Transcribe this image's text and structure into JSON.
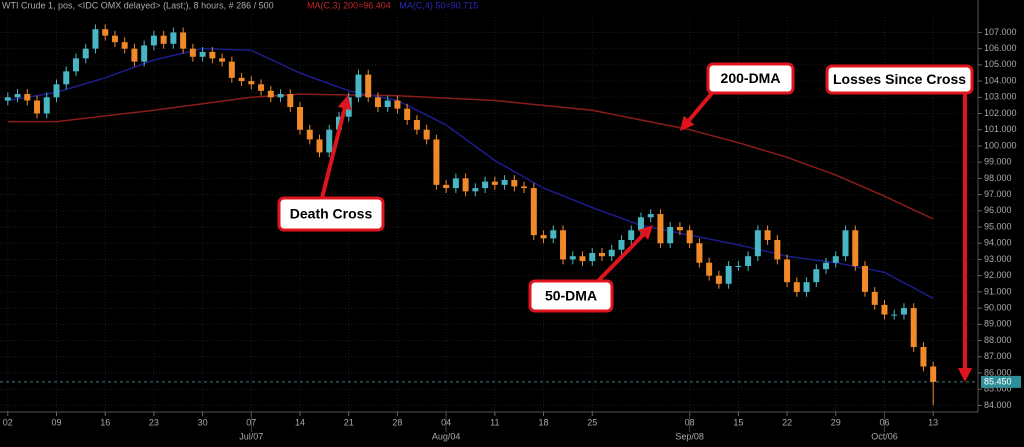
{
  "chart_data": {
    "type": "candlestick",
    "title": "WTI Crude 1, pos, <IDC OMX delayed> (Last;), 8 hours, # 286 / 500",
    "indicators": [
      {
        "text": "MA(C,3) 200=96.404",
        "color": "#c0282a"
      },
      {
        "text": "MA(C,4) 50=90.715",
        "color": "#2a2ab8"
      }
    ],
    "up_color": "#49b6c4",
    "down_color": "#f0892a",
    "x": [
      0,
      1,
      2,
      3,
      4,
      5,
      6,
      7,
      8,
      9,
      10,
      11,
      12,
      13,
      14,
      15,
      16,
      17,
      18,
      19,
      20,
      21,
      22,
      23,
      24,
      25,
      26,
      27,
      28,
      29,
      30,
      31,
      32,
      33,
      34,
      35,
      36,
      37,
      38,
      39,
      40,
      41,
      42,
      43,
      44,
      45,
      46,
      47,
      48,
      49,
      50,
      51,
      52,
      53,
      54,
      55,
      56,
      57,
      58,
      59,
      60,
      61,
      62,
      63,
      64,
      65,
      66,
      67,
      68,
      69,
      70,
      71,
      72,
      73,
      74,
      75,
      76,
      77,
      78,
      79,
      80,
      81,
      82,
      83,
      84,
      85,
      86,
      87,
      88,
      89,
      90,
      91,
      92,
      93,
      94,
      95
    ],
    "open": [
      102.8,
      103.0,
      103.2,
      102.8,
      102.0,
      103.0,
      103.8,
      104.6,
      105.4,
      106.0,
      107.2,
      106.8,
      106.4,
      106.0,
      105.2,
      106.2,
      106.8,
      106.3,
      107.0,
      106.0,
      105.5,
      105.8,
      105.4,
      105.2,
      104.2,
      104.0,
      103.8,
      103.4,
      103.0,
      103.2,
      102.4,
      101.0,
      100.4,
      99.6,
      101.0,
      101.8,
      103.0,
      104.4,
      103.0,
      102.4,
      102.8,
      102.3,
      101.6,
      101.0,
      100.4,
      97.6,
      97.4,
      98.0,
      97.2,
      97.4,
      97.8,
      97.6,
      97.9,
      97.5,
      97.4,
      94.5,
      94.3,
      94.8,
      93.0,
      93.2,
      92.9,
      93.4,
      93.2,
      93.6,
      94.2,
      94.8,
      95.6,
      95.8,
      94.0,
      95.0,
      94.8,
      94.0,
      92.8,
      92.0,
      91.5,
      92.6,
      92.6,
      93.2,
      94.8,
      94.2,
      93.0,
      91.6,
      91.0,
      91.6,
      92.4,
      92.8,
      93.2,
      94.8,
      92.6,
      91.0,
      90.2,
      89.6,
      89.6,
      90.0,
      87.6,
      86.4
    ],
    "high": [
      103.3,
      103.5,
      103.5,
      103.1,
      103.3,
      104.1,
      104.9,
      105.7,
      106.3,
      107.5,
      107.5,
      107.1,
      106.7,
      106.3,
      106.5,
      107.1,
      107.1,
      107.3,
      107.3,
      106.3,
      106.1,
      106.1,
      105.7,
      105.5,
      104.5,
      104.3,
      104.1,
      103.7,
      103.5,
      103.5,
      102.7,
      101.3,
      100.7,
      101.3,
      102.1,
      103.3,
      104.7,
      104.7,
      103.3,
      103.1,
      103.1,
      102.6,
      101.9,
      101.3,
      100.7,
      97.9,
      98.3,
      98.3,
      97.7,
      98.1,
      98.1,
      98.2,
      98.2,
      97.8,
      97.7,
      94.8,
      95.1,
      95.1,
      93.5,
      93.5,
      93.7,
      93.7,
      93.9,
      94.5,
      95.1,
      95.9,
      96.1,
      96.1,
      95.3,
      95.3,
      95.1,
      94.3,
      93.1,
      92.3,
      92.9,
      92.9,
      93.5,
      95.1,
      95.1,
      94.5,
      93.3,
      91.9,
      91.9,
      92.7,
      93.1,
      93.5,
      95.1,
      95.1,
      92.9,
      91.3,
      90.5,
      89.9,
      90.3,
      90.3,
      87.9,
      86.7
    ],
    "low": [
      102.5,
      102.7,
      102.5,
      101.7,
      101.7,
      102.7,
      103.5,
      104.3,
      105.1,
      105.7,
      106.5,
      106.1,
      105.7,
      104.9,
      104.9,
      105.9,
      106.0,
      106.0,
      105.7,
      105.2,
      105.2,
      105.1,
      104.9,
      103.9,
      103.7,
      103.5,
      103.1,
      102.7,
      102.7,
      102.1,
      100.7,
      100.1,
      99.3,
      99.3,
      100.7,
      101.5,
      102.7,
      102.7,
      102.1,
      102.1,
      102.0,
      101.3,
      100.7,
      100.1,
      97.3,
      97.1,
      97.1,
      96.9,
      96.9,
      97.1,
      97.3,
      97.3,
      97.2,
      97.1,
      94.2,
      94.0,
      94.0,
      92.7,
      92.7,
      92.6,
      92.6,
      92.9,
      92.9,
      93.3,
      93.9,
      94.5,
      95.3,
      93.7,
      93.7,
      94.5,
      93.7,
      92.5,
      91.7,
      91.2,
      91.2,
      92.3,
      92.3,
      92.9,
      93.9,
      92.7,
      91.3,
      90.7,
      90.7,
      91.3,
      92.1,
      92.5,
      92.9,
      92.3,
      90.7,
      89.9,
      89.3,
      89.3,
      89.3,
      87.3,
      86.1,
      84.0
    ],
    "close": [
      103.0,
      103.2,
      102.8,
      102.0,
      103.0,
      103.8,
      104.6,
      105.4,
      106.0,
      107.2,
      106.8,
      106.4,
      106.0,
      105.2,
      106.2,
      106.8,
      106.3,
      107.0,
      106.0,
      105.5,
      105.8,
      105.4,
      105.2,
      104.2,
      104.0,
      103.8,
      103.4,
      103.0,
      103.2,
      102.4,
      101.0,
      100.4,
      99.6,
      101.0,
      101.8,
      103.0,
      104.4,
      103.0,
      102.4,
      102.8,
      102.3,
      101.6,
      101.0,
      100.4,
      97.6,
      97.4,
      98.0,
      97.2,
      97.4,
      97.8,
      97.6,
      97.9,
      97.5,
      97.4,
      94.5,
      94.3,
      94.8,
      93.0,
      93.2,
      92.9,
      93.4,
      93.2,
      93.6,
      94.2,
      94.8,
      95.6,
      95.8,
      94.0,
      95.0,
      94.8,
      94.0,
      92.8,
      92.0,
      91.5,
      92.6,
      92.6,
      93.2,
      94.8,
      94.2,
      93.0,
      91.6,
      91.0,
      91.6,
      92.4,
      92.8,
      93.2,
      94.8,
      92.6,
      91.0,
      90.2,
      89.6,
      89.6,
      90.0,
      87.6,
      86.4,
      85.45
    ],
    "moving_averages": [
      {
        "color": "#8a1c1c",
        "x": [
          0,
          5,
          15,
          25,
          30,
          40,
          50,
          60,
          70,
          75,
          80,
          85,
          90,
          95
        ],
        "values": [
          101.5,
          101.5,
          102.2,
          103.0,
          103.2,
          103.1,
          102.8,
          102.2,
          101.0,
          100.2,
          99.3,
          98.2,
          96.9,
          95.5
        ]
      },
      {
        "color": "#1c1c8c",
        "x": [
          0,
          5,
          10,
          15,
          20,
          25,
          30,
          35,
          40,
          45,
          50,
          55,
          60,
          65,
          70,
          75,
          80,
          85,
          90,
          95
        ],
        "values": [
          102.8,
          103.3,
          104.2,
          105.3,
          106.0,
          105.9,
          104.5,
          103.4,
          102.8,
          101.3,
          99.1,
          97.4,
          96.2,
          95.1,
          94.5,
          93.9,
          93.2,
          92.8,
          92.2,
          90.6
        ]
      }
    ],
    "last_price": {
      "value": 85.45,
      "label": "85.450"
    },
    "xlim": [
      -0.8,
      99.6
    ],
    "ylim": [
      83.1,
      109.0
    ],
    "grid": true,
    "yticks": [
      {
        "value": 84,
        "label": "84.000"
      },
      {
        "value": 85,
        "label": "85.000"
      },
      {
        "value": 86,
        "label": "86.000"
      },
      {
        "value": 87,
        "label": "87.000"
      },
      {
        "value": 88,
        "label": "88.000"
      },
      {
        "value": 89,
        "label": "89.000"
      },
      {
        "value": 90,
        "label": "90.000"
      },
      {
        "value": 91,
        "label": "91.000"
      },
      {
        "value": 92,
        "label": "92.000"
      },
      {
        "value": 93,
        "label": "93.000"
      },
      {
        "value": 94,
        "label": "94.000"
      },
      {
        "value": 95,
        "label": "95.000"
      },
      {
        "value": 96,
        "label": "96.000"
      },
      {
        "value": 97,
        "label": "97.000"
      },
      {
        "value": 98,
        "label": "98.000"
      },
      {
        "value": 99,
        "label": "99.000"
      },
      {
        "value": 100,
        "label": "100.000"
      },
      {
        "value": 101,
        "label": "101.000"
      },
      {
        "value": 102,
        "label": "102.000"
      },
      {
        "value": 103,
        "label": "103.000"
      },
      {
        "value": 104,
        "label": "104.000"
      },
      {
        "value": 105,
        "label": "105.000"
      },
      {
        "value": 106,
        "label": "106.000"
      },
      {
        "value": 107,
        "label": "107.000"
      }
    ],
    "xticks": [
      {
        "value": 0,
        "label": "02"
      },
      {
        "value": 5,
        "label": "09"
      },
      {
        "value": 10,
        "label": "16"
      },
      {
        "value": 15,
        "label": "23"
      },
      {
        "value": 20,
        "label": "30"
      },
      {
        "value": 25,
        "label": "07"
      },
      {
        "value": 30,
        "label": "14"
      },
      {
        "value": 35,
        "label": "21"
      },
      {
        "value": 40,
        "label": "28"
      },
      {
        "value": 45,
        "label": "04"
      },
      {
        "value": 50,
        "label": "11"
      },
      {
        "value": 55,
        "label": "18"
      },
      {
        "value": 60,
        "label": "25"
      },
      {
        "value": 70,
        "label": "08"
      },
      {
        "value": 75,
        "label": "15"
      },
      {
        "value": 80,
        "label": "22"
      },
      {
        "value": 85,
        "label": "29"
      },
      {
        "value": 90,
        "label": "06"
      },
      {
        "value": 95,
        "label": "13"
      }
    ],
    "month_ticks": [
      {
        "value": 25,
        "label": "Jul/07"
      },
      {
        "value": 45,
        "label": "Aug/04"
      },
      {
        "value": 70,
        "label": "Sep/08"
      },
      {
        "value": 90,
        "label": "Oct/06"
      }
    ],
    "annotations": [
      "Death Cross",
      "200-DMA",
      "50-DMA",
      "Losses Since Cross"
    ]
  }
}
